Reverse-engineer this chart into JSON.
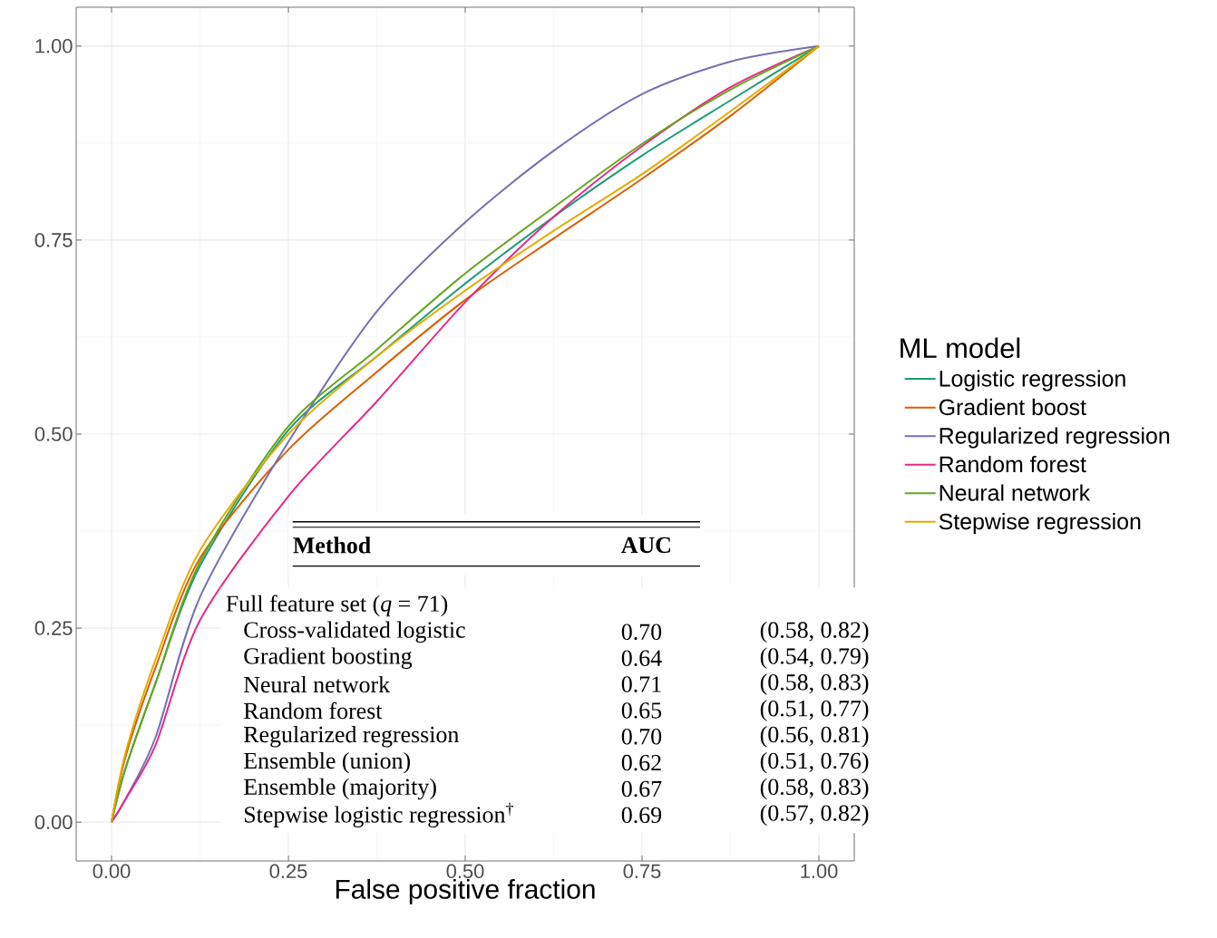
{
  "chart_data": {
    "type": "line",
    "xlabel": "False positive fraction",
    "legend_title": "ML model",
    "legend": "right",
    "grid": true,
    "marker": "none",
    "line_style": "solid",
    "x": [
      0,
      0.02,
      0.0625,
      0.125,
      0.25,
      0.375,
      0.5,
      0.625,
      0.75,
      0.875,
      1
    ],
    "xlim": [
      -0.05,
      1.05
    ],
    "ylim": [
      -0.05,
      1.05
    ],
    "xticks": [
      {
        "value": 0,
        "label": "0.00"
      },
      {
        "value": 0.25,
        "label": "0.25"
      },
      {
        "value": 0.5,
        "label": "0.50"
      },
      {
        "value": 0.75,
        "label": "0.75"
      },
      {
        "value": 1,
        "label": "1.00"
      }
    ],
    "yticks": [
      {
        "value": 0,
        "label": "0.00"
      },
      {
        "value": 0.25,
        "label": "0.25"
      },
      {
        "value": 0.5,
        "label": "0.50"
      },
      {
        "value": 0.75,
        "label": "0.75"
      },
      {
        "value": 1,
        "label": "1.00"
      }
    ],
    "series": [
      {
        "name": "Logistic regression",
        "color": "#1b9e77",
        "values": [
          0,
          0.07,
          0.18,
          0.33,
          0.505,
          0.6,
          0.694,
          0.78,
          0.859,
          0.93,
          1
        ]
      },
      {
        "name": "Gradient boost",
        "color": "#d95f02",
        "values": [
          0,
          0.085,
          0.2,
          0.34,
          0.48,
          0.58,
          0.673,
          0.752,
          0.829,
          0.91,
          1
        ]
      },
      {
        "name": "Regularized regression",
        "color": "#7570b3",
        "values": [
          0,
          0.03,
          0.11,
          0.29,
          0.49,
          0.658,
          0.773,
          0.865,
          0.938,
          0.98,
          1
        ]
      },
      {
        "name": "Random forest",
        "color": "#e7298a",
        "values": [
          0,
          0.03,
          0.1,
          0.26,
          0.42,
          0.542,
          0.67,
          0.78,
          0.871,
          0.947,
          1
        ]
      },
      {
        "name": "Neural network",
        "color": "#66a61e",
        "values": [
          0,
          0.07,
          0.18,
          0.335,
          0.51,
          0.609,
          0.707,
          0.792,
          0.874,
          0.944,
          1
        ]
      },
      {
        "name": "Stepwise regression",
        "color": "#e6ab02",
        "values": [
          0,
          0.09,
          0.21,
          0.35,
          0.5,
          0.6,
          0.685,
          0.762,
          0.835,
          0.916,
          1
        ]
      }
    ],
    "annotations": [
      "Method",
      "AUC",
      "Full feature set (*q* = 71)",
      "Cross-validated logistic",
      "0.70",
      "(0.58, 0.82)",
      "Gradient boosting",
      "0.64",
      "(0.54, 0.79)",
      "Neural network",
      "0.71",
      "(0.58, 0.83)",
      "Random forest",
      "0.65",
      "(0.51, 0.77)",
      "Regularized regression",
      "0.70",
      "(0.56, 0.81)",
      "Ensemble (union)",
      "0.62",
      "(0.51, 0.76)",
      "Ensemble (majority)",
      "0.67",
      "(0.58, 0.83)",
      "Stepwise logistic regression$^{†}$",
      "0.69",
      "(0.57, 0.82)"
    ]
  }
}
